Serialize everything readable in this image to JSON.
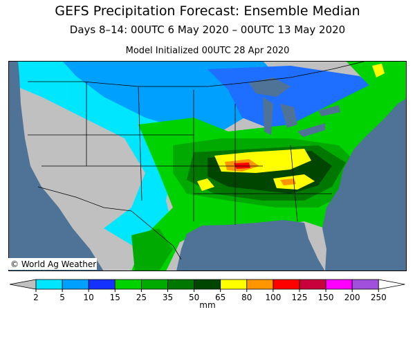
{
  "header": {
    "title": "GEFS Precipitation Forecast: Ensemble Median",
    "subtitle": "Days 8–14: 00UTC 6 May 2020 – 00UTC 13 May 2020",
    "initialized": "Model Initialized 00UTC 28 Apr 2020"
  },
  "map": {
    "credit": "© World Ag Weather"
  },
  "colorbar": {
    "ticks": [
      2,
      5,
      10,
      15,
      25,
      35,
      50,
      65,
      80,
      100,
      125,
      150,
      200,
      250
    ],
    "colors": [
      "#00e6ff",
      "#00a0ff",
      "#1432ff",
      "#00d200",
      "#00aa00",
      "#007800",
      "#004600",
      "#ffff00",
      "#ff9600",
      "#ff0000",
      "#c8003c",
      "#ff00ff",
      "#a050dc"
    ],
    "under_color": "#c0c0c0",
    "over_color": "#ffffff",
    "unit": "mm"
  }
}
